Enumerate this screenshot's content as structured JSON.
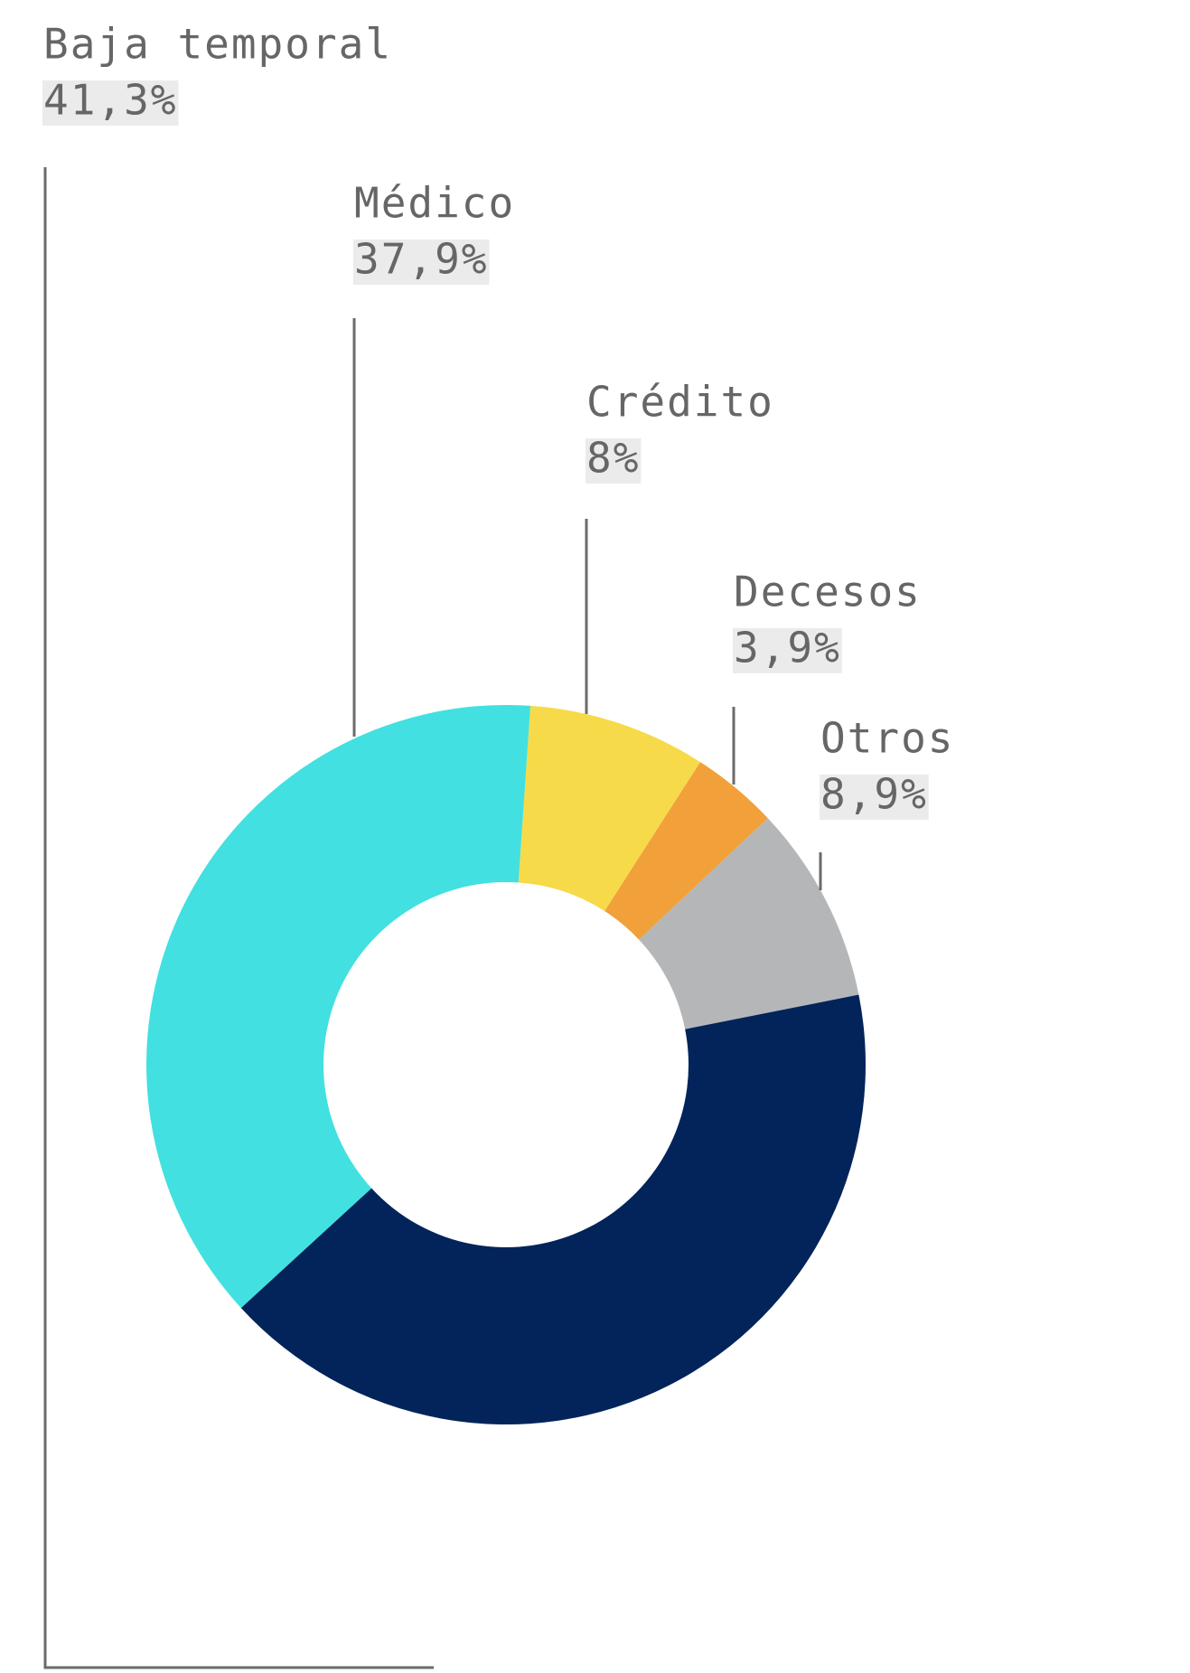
{
  "chart_data": {
    "type": "pie",
    "donut": true,
    "categories": [
      "Crédito",
      "Decesos",
      "Otros",
      "Baja temporal",
      "Médico"
    ],
    "values": [
      8,
      3.9,
      8.9,
      41.3,
      37.9
    ],
    "value_labels": [
      "8%",
      "3,9%",
      "8,9%",
      "41,3%",
      "37,9%"
    ],
    "colors": [
      "#f7da4a",
      "#f2a03a",
      "#b5b6b8",
      "#02245a",
      "#42e0e0"
    ]
  }
}
